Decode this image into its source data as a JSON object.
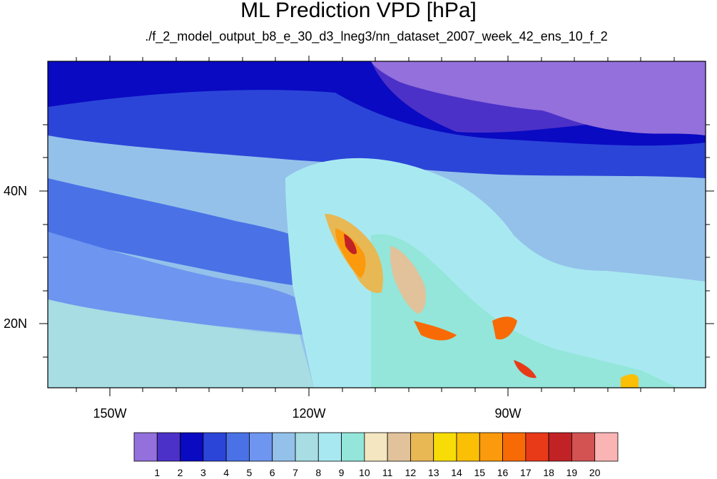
{
  "title": "ML Prediction VPD [hPa]",
  "subtitle": "./f_2_model_output_b8_e_30_d3_lneg3/nn_dataset_2007_week_42_ens_10_f_2",
  "map": {
    "lat_labels": [
      "40N",
      "20N"
    ],
    "lon_labels": [
      "150W",
      "120W",
      "90W"
    ]
  },
  "colorbar": {
    "labels": [
      "1",
      "2",
      "3",
      "4",
      "5",
      "6",
      "7",
      "8",
      "9",
      "10",
      "11",
      "12",
      "13",
      "14",
      "15",
      "16",
      "17",
      "18",
      "19",
      "20"
    ],
    "colors": [
      "#9370db",
      "#4c31c8",
      "#0a0ac2",
      "#2b45d8",
      "#4a72e6",
      "#6e95ef",
      "#94c1ea",
      "#a7dde3",
      "#a8e9f1",
      "#93e6d9",
      "#f3e6c0",
      "#e1c29a",
      "#e8b854",
      "#f8dc08",
      "#fbbf06",
      "#fb9a0c",
      "#f86a06",
      "#e83a18",
      "#c12226",
      "#d35252",
      "#fbb4b4"
    ]
  }
}
